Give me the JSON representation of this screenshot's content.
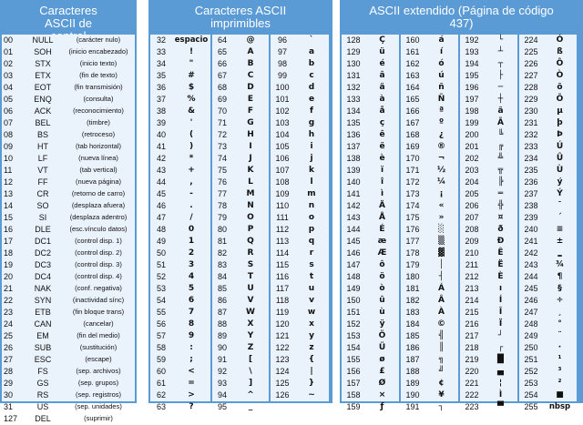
{
  "control": {
    "title": "Caracteres ASCII de control",
    "rows": [
      [
        "00",
        "NULL",
        "(carácter nulo)"
      ],
      [
        "01",
        "SOH",
        "(inicio encabezado)"
      ],
      [
        "02",
        "STX",
        "(inicio texto)"
      ],
      [
        "03",
        "ETX",
        "(fin de texto)"
      ],
      [
        "04",
        "EOT",
        "(fin transmisión)"
      ],
      [
        "05",
        "ENQ",
        "(consulta)"
      ],
      [
        "06",
        "ACK",
        "(reconocimiento)"
      ],
      [
        "07",
        "BEL",
        "(timbre)"
      ],
      [
        "08",
        "BS",
        "(retroceso)"
      ],
      [
        "09",
        "HT",
        "(tab horizontal)"
      ],
      [
        "10",
        "LF",
        "(nueva línea)"
      ],
      [
        "11",
        "VT",
        "(tab vertical)"
      ],
      [
        "12",
        "FF",
        "(nueva página)"
      ],
      [
        "13",
        "CR",
        "(retorno de carro)"
      ],
      [
        "14",
        "SO",
        "(desplaza afuera)"
      ],
      [
        "15",
        "SI",
        "(desplaza adentro)"
      ],
      [
        "16",
        "DLE",
        "(esc.vínculo datos)"
      ],
      [
        "17",
        "DC1",
        "(control disp. 1)"
      ],
      [
        "18",
        "DC2",
        "(control disp. 2)"
      ],
      [
        "19",
        "DC3",
        "(control disp. 3)"
      ],
      [
        "20",
        "DC4",
        "(control disp. 4)"
      ],
      [
        "21",
        "NAK",
        "(conf. negativa)"
      ],
      [
        "22",
        "SYN",
        "(inactividad sínc)"
      ],
      [
        "23",
        "ETB",
        "(fin bloque trans)"
      ],
      [
        "24",
        "CAN",
        "(cancelar)"
      ],
      [
        "25",
        "EM",
        "(fin del medio)"
      ],
      [
        "26",
        "SUB",
        "(sustitución)"
      ],
      [
        "27",
        "ESC",
        "(escape)"
      ],
      [
        "28",
        "FS",
        "(sep. archivos)"
      ],
      [
        "29",
        "GS",
        "(sep. grupos)"
      ],
      [
        "30",
        "RS",
        "(sep. registros)"
      ],
      [
        "31",
        "US",
        "(sep. unidades)"
      ],
      [
        "127",
        "DEL",
        "(suprimir)"
      ]
    ]
  },
  "printable": {
    "title": "Caracteres ASCII imprimibles",
    "columns": [
      [
        [
          "32",
          "espacio"
        ],
        [
          "33",
          "!"
        ],
        [
          "34",
          "\""
        ],
        [
          "35",
          "#"
        ],
        [
          "36",
          "$"
        ],
        [
          "37",
          "%"
        ],
        [
          "38",
          "&"
        ],
        [
          "39",
          "'"
        ],
        [
          "40",
          "("
        ],
        [
          "41",
          ")"
        ],
        [
          "42",
          "*"
        ],
        [
          "43",
          "+"
        ],
        [
          "44",
          ","
        ],
        [
          "45",
          "-"
        ],
        [
          "46",
          "."
        ],
        [
          "47",
          "/"
        ],
        [
          "48",
          "0"
        ],
        [
          "49",
          "1"
        ],
        [
          "50",
          "2"
        ],
        [
          "51",
          "3"
        ],
        [
          "52",
          "4"
        ],
        [
          "53",
          "5"
        ],
        [
          "54",
          "6"
        ],
        [
          "55",
          "7"
        ],
        [
          "56",
          "8"
        ],
        [
          "57",
          "9"
        ],
        [
          "58",
          ":"
        ],
        [
          "59",
          ";"
        ],
        [
          "60",
          "<"
        ],
        [
          "61",
          "="
        ],
        [
          "62",
          ">"
        ],
        [
          "63",
          "?"
        ]
      ],
      [
        [
          "64",
          "@"
        ],
        [
          "65",
          "A"
        ],
        [
          "66",
          "B"
        ],
        [
          "67",
          "C"
        ],
        [
          "68",
          "D"
        ],
        [
          "69",
          "E"
        ],
        [
          "70",
          "F"
        ],
        [
          "71",
          "G"
        ],
        [
          "72",
          "H"
        ],
        [
          "73",
          "I"
        ],
        [
          "74",
          "J"
        ],
        [
          "75",
          "K"
        ],
        [
          "76",
          "L"
        ],
        [
          "77",
          "M"
        ],
        [
          "78",
          "N"
        ],
        [
          "79",
          "O"
        ],
        [
          "80",
          "P"
        ],
        [
          "81",
          "Q"
        ],
        [
          "82",
          "R"
        ],
        [
          "83",
          "S"
        ],
        [
          "84",
          "T"
        ],
        [
          "85",
          "U"
        ],
        [
          "86",
          "V"
        ],
        [
          "87",
          "W"
        ],
        [
          "88",
          "X"
        ],
        [
          "89",
          "Y"
        ],
        [
          "90",
          "Z"
        ],
        [
          "91",
          "["
        ],
        [
          "92",
          "\\"
        ],
        [
          "93",
          "]"
        ],
        [
          "94",
          "^"
        ],
        [
          "95",
          "_"
        ]
      ],
      [
        [
          "96",
          "`"
        ],
        [
          "97",
          "a"
        ],
        [
          "98",
          "b"
        ],
        [
          "99",
          "c"
        ],
        [
          "100",
          "d"
        ],
        [
          "101",
          "e"
        ],
        [
          "102",
          "f"
        ],
        [
          "103",
          "g"
        ],
        [
          "104",
          "h"
        ],
        [
          "105",
          "i"
        ],
        [
          "106",
          "j"
        ],
        [
          "107",
          "k"
        ],
        [
          "108",
          "l"
        ],
        [
          "109",
          "m"
        ],
        [
          "110",
          "n"
        ],
        [
          "111",
          "o"
        ],
        [
          "112",
          "p"
        ],
        [
          "113",
          "q"
        ],
        [
          "114",
          "r"
        ],
        [
          "115",
          "s"
        ],
        [
          "116",
          "t"
        ],
        [
          "117",
          "u"
        ],
        [
          "118",
          "v"
        ],
        [
          "119",
          "w"
        ],
        [
          "120",
          "x"
        ],
        [
          "121",
          "y"
        ],
        [
          "122",
          "z"
        ],
        [
          "123",
          "{"
        ],
        [
          "124",
          "|"
        ],
        [
          "125",
          "}"
        ],
        [
          "126",
          "~"
        ]
      ]
    ]
  },
  "extended": {
    "title": "ASCII extendido (Página de código 437)",
    "columns": [
      [
        [
          "128",
          "Ç"
        ],
        [
          "129",
          "ü"
        ],
        [
          "130",
          "é"
        ],
        [
          "131",
          "â"
        ],
        [
          "132",
          "ä"
        ],
        [
          "133",
          "à"
        ],
        [
          "134",
          "å"
        ],
        [
          "135",
          "ç"
        ],
        [
          "136",
          "ê"
        ],
        [
          "137",
          "ë"
        ],
        [
          "138",
          "è"
        ],
        [
          "139",
          "ï"
        ],
        [
          "140",
          "î"
        ],
        [
          "141",
          "ì"
        ],
        [
          "142",
          "Ä"
        ],
        [
          "143",
          "Å"
        ],
        [
          "144",
          "É"
        ],
        [
          "145",
          "æ"
        ],
        [
          "146",
          "Æ"
        ],
        [
          "147",
          "ô"
        ],
        [
          "148",
          "ö"
        ],
        [
          "149",
          "ò"
        ],
        [
          "150",
          "û"
        ],
        [
          "151",
          "ù"
        ],
        [
          "152",
          "ÿ"
        ],
        [
          "153",
          "Ö"
        ],
        [
          "154",
          "Ü"
        ],
        [
          "155",
          "ø"
        ],
        [
          "156",
          "£"
        ],
        [
          "157",
          "Ø"
        ],
        [
          "158",
          "×"
        ],
        [
          "159",
          "ƒ"
        ]
      ],
      [
        [
          "160",
          "á"
        ],
        [
          "161",
          "í"
        ],
        [
          "162",
          "ó"
        ],
        [
          "163",
          "ú"
        ],
        [
          "164",
          "ñ"
        ],
        [
          "165",
          "Ñ"
        ],
        [
          "166",
          "ª"
        ],
        [
          "167",
          "º"
        ],
        [
          "168",
          "¿"
        ],
        [
          "169",
          "®"
        ],
        [
          "170",
          "¬"
        ],
        [
          "171",
          "½"
        ],
        [
          "172",
          "¼"
        ],
        [
          "173",
          "¡"
        ],
        [
          "174",
          "«"
        ],
        [
          "175",
          "»"
        ],
        [
          "176",
          "░"
        ],
        [
          "177",
          "▒"
        ],
        [
          "178",
          "▓"
        ],
        [
          "179",
          "│"
        ],
        [
          "180",
          "┤"
        ],
        [
          "181",
          "Á"
        ],
        [
          "182",
          "Â"
        ],
        [
          "183",
          "À"
        ],
        [
          "184",
          "©"
        ],
        [
          "185",
          "╣"
        ],
        [
          "186",
          "║"
        ],
        [
          "187",
          "╗"
        ],
        [
          "188",
          "╝"
        ],
        [
          "189",
          "¢"
        ],
        [
          "190",
          "¥"
        ],
        [
          "191",
          "┐"
        ]
      ],
      [
        [
          "192",
          "└"
        ],
        [
          "193",
          "┴"
        ],
        [
          "194",
          "┬"
        ],
        [
          "195",
          "├"
        ],
        [
          "196",
          "─"
        ],
        [
          "197",
          "┼"
        ],
        [
          "198",
          "ã"
        ],
        [
          "199",
          "Ã"
        ],
        [
          "200",
          "╚"
        ],
        [
          "201",
          "╔"
        ],
        [
          "202",
          "╩"
        ],
        [
          "203",
          "╦"
        ],
        [
          "204",
          "╠"
        ],
        [
          "205",
          "═"
        ],
        [
          "206",
          "╬"
        ],
        [
          "207",
          "¤"
        ],
        [
          "208",
          "ð"
        ],
        [
          "209",
          "Ð"
        ],
        [
          "210",
          "Ê"
        ],
        [
          "211",
          "Ë"
        ],
        [
          "212",
          "È"
        ],
        [
          "213",
          "ı"
        ],
        [
          "214",
          "Í"
        ],
        [
          "215",
          "Î"
        ],
        [
          "216",
          "Ï"
        ],
        [
          "217",
          "┘"
        ],
        [
          "218",
          "┌"
        ],
        [
          "219",
          "█"
        ],
        [
          "220",
          "▄"
        ],
        [
          "221",
          "¦"
        ],
        [
          "222",
          "Ì"
        ],
        [
          "223",
          "▀"
        ]
      ],
      [
        [
          "224",
          "Ó"
        ],
        [
          "225",
          "ß"
        ],
        [
          "226",
          "Ô"
        ],
        [
          "227",
          "Ò"
        ],
        [
          "228",
          "õ"
        ],
        [
          "229",
          "Õ"
        ],
        [
          "230",
          "µ"
        ],
        [
          "231",
          "þ"
        ],
        [
          "232",
          "Þ"
        ],
        [
          "233",
          "Ú"
        ],
        [
          "234",
          "Û"
        ],
        [
          "235",
          "Ù"
        ],
        [
          "236",
          "ý"
        ],
        [
          "237",
          "Ý"
        ],
        [
          "238",
          "¯"
        ],
        [
          "239",
          "´"
        ],
        [
          "240",
          "≡"
        ],
        [
          "241",
          "±"
        ],
        [
          "242",
          "‗"
        ],
        [
          "243",
          "¾"
        ],
        [
          "244",
          "¶"
        ],
        [
          "245",
          "§"
        ],
        [
          "246",
          "÷"
        ],
        [
          "247",
          "¸"
        ],
        [
          "248",
          "°"
        ],
        [
          "249",
          "¨"
        ],
        [
          "250",
          "·"
        ],
        [
          "251",
          "¹"
        ],
        [
          "252",
          "³"
        ],
        [
          "253",
          "²"
        ],
        [
          "254",
          "■"
        ],
        [
          "255",
          "nbsp"
        ]
      ]
    ]
  }
}
